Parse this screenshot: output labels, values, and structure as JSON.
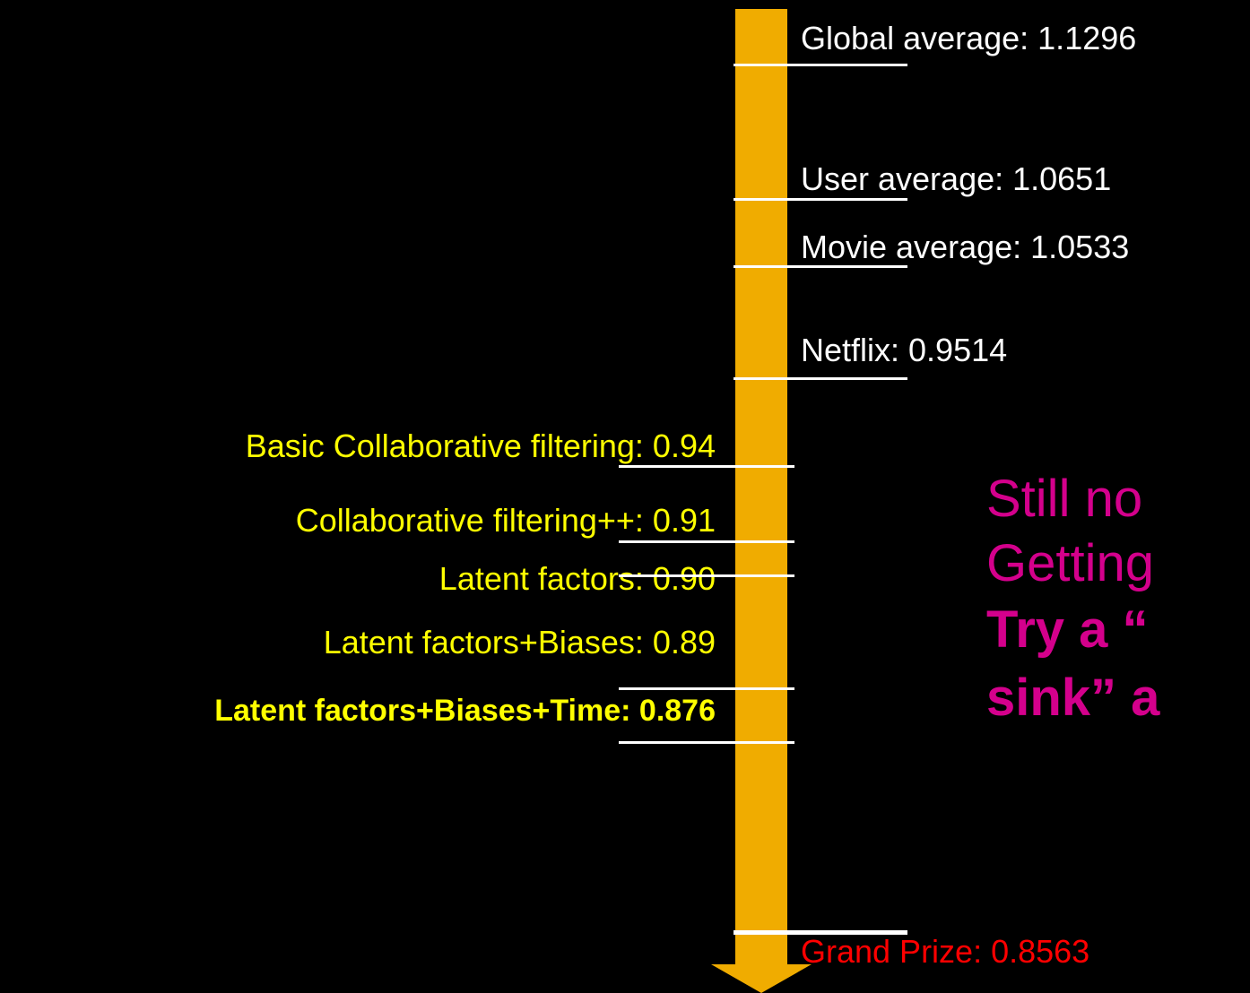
{
  "benchmarks": [
    {
      "label": "Global average: 1.1296"
    },
    {
      "label": "User average: 1.0651"
    },
    {
      "label": "Movie  average: 1.0533"
    },
    {
      "label": "Netflix: 0.9514"
    },
    {
      "label": "Grand Prize: 0.8563"
    }
  ],
  "methods": [
    {
      "label": "Basic Collaborative filtering: 0.94"
    },
    {
      "label": "Collaborative filtering++: 0.91"
    },
    {
      "label": "Latent factors: 0.90"
    },
    {
      "label": "Latent factors+Biases: 0.89"
    },
    {
      "label": "Latent factors+Biases+Time: 0.876"
    }
  ],
  "message": {
    "lines": [
      "Still no",
      "Getting",
      "Try a “",
      "sink” a"
    ]
  }
}
